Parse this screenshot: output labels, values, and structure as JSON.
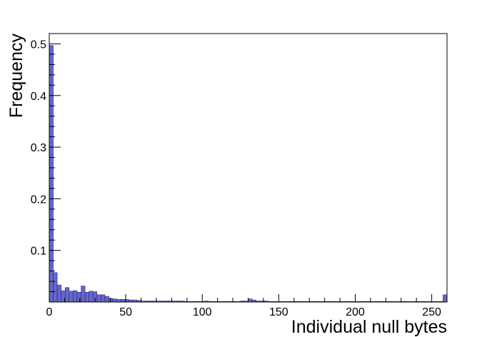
{
  "chart_data": {
    "type": "bar",
    "title": "",
    "xlabel": "Individual null bytes",
    "ylabel": "Frequency",
    "xlim": [
      0,
      260
    ],
    "ylim": [
      0,
      0.52
    ],
    "bin_width": 2.6,
    "x_ticks": [
      0,
      50,
      100,
      150,
      200,
      250
    ],
    "y_ticks": [
      0.1,
      0.2,
      0.3,
      0.4,
      0.5
    ],
    "grid": false,
    "legend": "none",
    "bar_fill": "#6666cc",
    "bar_edge": "#1a1a66",
    "series": [
      {
        "values": [
          0.497,
          0.057,
          0.033,
          0.022,
          0.028,
          0.021,
          0.022,
          0.019,
          0.031,
          0.019,
          0.021,
          0.02,
          0.014,
          0.014,
          0.011,
          0.007,
          0.006,
          0.005,
          0.005,
          0.005,
          0.004,
          0.004,
          0.003,
          0.002,
          0.002,
          0.002,
          0.002,
          0.002,
          0.002,
          0.002,
          0.002,
          0.002,
          0.002,
          0.002,
          0.001,
          0.001,
          0.001,
          0.001,
          0.001,
          0.002,
          0.001,
          0.001,
          0.001,
          0.001,
          0.001,
          0.001,
          0.001,
          0.001,
          0.002,
          0.002,
          0.006,
          0.004,
          0.002,
          0.002,
          0.002,
          0.001,
          0.001,
          0.001,
          0.001,
          0.001,
          0.001,
          0.001,
          0.001,
          0.001,
          0.001,
          0.001,
          0.001,
          0.001,
          0.001,
          0.001,
          0.001,
          0.001,
          0.001,
          0.001,
          0.001,
          0.001,
          0.001,
          0.001,
          0.001,
          0.001,
          0.001,
          0.001,
          0.001,
          0.001,
          0.001,
          0.001,
          0.001,
          0.001,
          0.001,
          0.001,
          0.001,
          0.001,
          0.001,
          0.001,
          0.001,
          0.001,
          0.001,
          0.001,
          0.001,
          0.014
        ]
      }
    ]
  }
}
